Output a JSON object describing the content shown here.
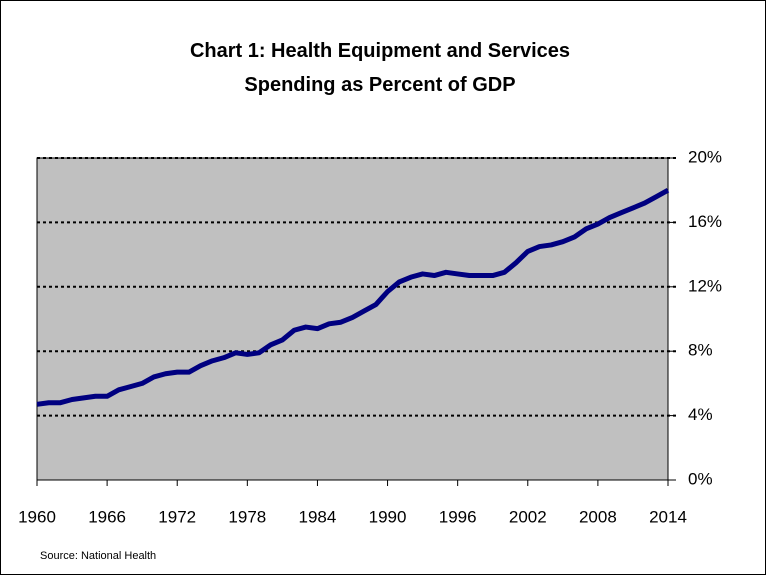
{
  "chart_data": {
    "type": "line",
    "title": "Chart 1: Health Equipment and Services Spending as Percent of GDP",
    "source": "Source: National Health",
    "x": [
      1960,
      1961,
      1962,
      1963,
      1964,
      1965,
      1966,
      1967,
      1968,
      1969,
      1970,
      1971,
      1972,
      1973,
      1974,
      1975,
      1976,
      1977,
      1978,
      1979,
      1980,
      1981,
      1982,
      1983,
      1984,
      1985,
      1986,
      1987,
      1988,
      1989,
      1990,
      1991,
      1992,
      1993,
      1994,
      1995,
      1996,
      1997,
      1998,
      1999,
      2000,
      2001,
      2002,
      2003,
      2004,
      2005,
      2006,
      2007,
      2008,
      2009,
      2010,
      2011,
      2012,
      2013,
      2014
    ],
    "series": [
      {
        "color": "#000080",
        "values": [
          4.7,
          4.8,
          4.8,
          5.0,
          5.1,
          5.2,
          5.2,
          5.6,
          5.8,
          6.0,
          6.4,
          6.6,
          6.7,
          6.7,
          7.1,
          7.4,
          7.6,
          7.9,
          7.8,
          7.9,
          8.4,
          8.7,
          9.3,
          9.5,
          9.4,
          9.7,
          9.8,
          10.1,
          10.5,
          10.9,
          11.7,
          12.3,
          12.6,
          12.8,
          12.7,
          12.9,
          12.8,
          12.7,
          12.7,
          12.7,
          12.9,
          13.5,
          14.2,
          14.5,
          14.6,
          14.8,
          15.1,
          15.6,
          15.9,
          16.3,
          16.6,
          16.9,
          17.2,
          17.6,
          18.0
        ]
      }
    ],
    "xlim": [
      1960,
      2014
    ],
    "xticks": [
      1960,
      1966,
      1972,
      1978,
      1984,
      1990,
      1996,
      2002,
      2008,
      2014
    ],
    "ylim": [
      0,
      20
    ],
    "yticks": [
      {
        "value": 0,
        "label": "0%"
      },
      {
        "value": 4,
        "label": "4%"
      },
      {
        "value": 8,
        "label": "8%"
      },
      {
        "value": 12,
        "label": "12%"
      },
      {
        "value": 16,
        "label": "16%"
      },
      {
        "value": 20,
        "label": "20%"
      }
    ],
    "grid": true
  }
}
